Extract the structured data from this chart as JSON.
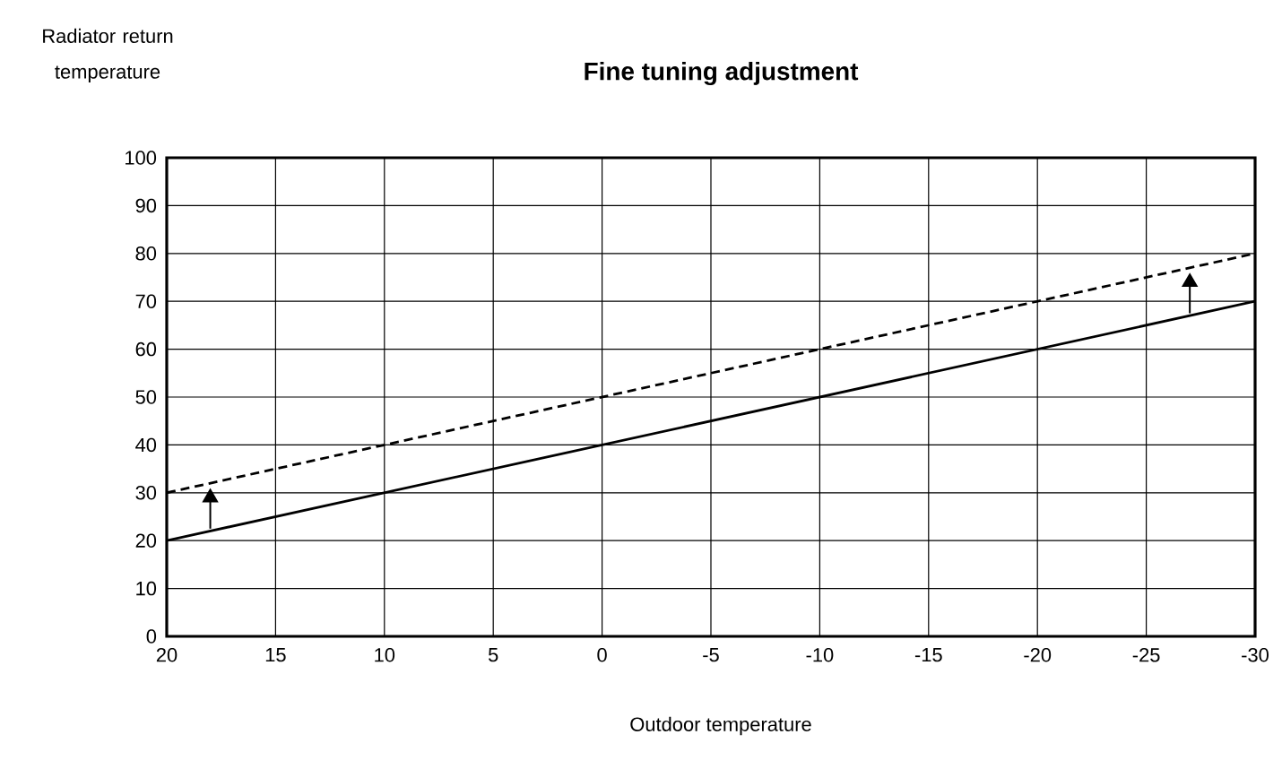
{
  "chart_data": {
    "type": "line",
    "title": "Fine tuning adjustment",
    "xlabel": "Outdoor temperature",
    "ylabel": "Radiator return temperature",
    "x": [
      20,
      -30
    ],
    "series": [
      {
        "color": "#000000",
        "line_style": "solid",
        "values": [
          20,
          70
        ]
      },
      {
        "color": "#000000",
        "line_style": "dashed",
        "values": [
          30,
          80
        ]
      }
    ],
    "xlim": [
      20,
      -30
    ],
    "ylim": [
      0,
      100
    ],
    "xticks": [
      20,
      15,
      10,
      5,
      0,
      -5,
      -10,
      -15,
      -20,
      -25,
      -30
    ],
    "yticks": [
      0,
      10,
      20,
      30,
      40,
      50,
      60,
      70,
      80,
      90,
      100
    ],
    "grid": true,
    "marker": "none"
  }
}
